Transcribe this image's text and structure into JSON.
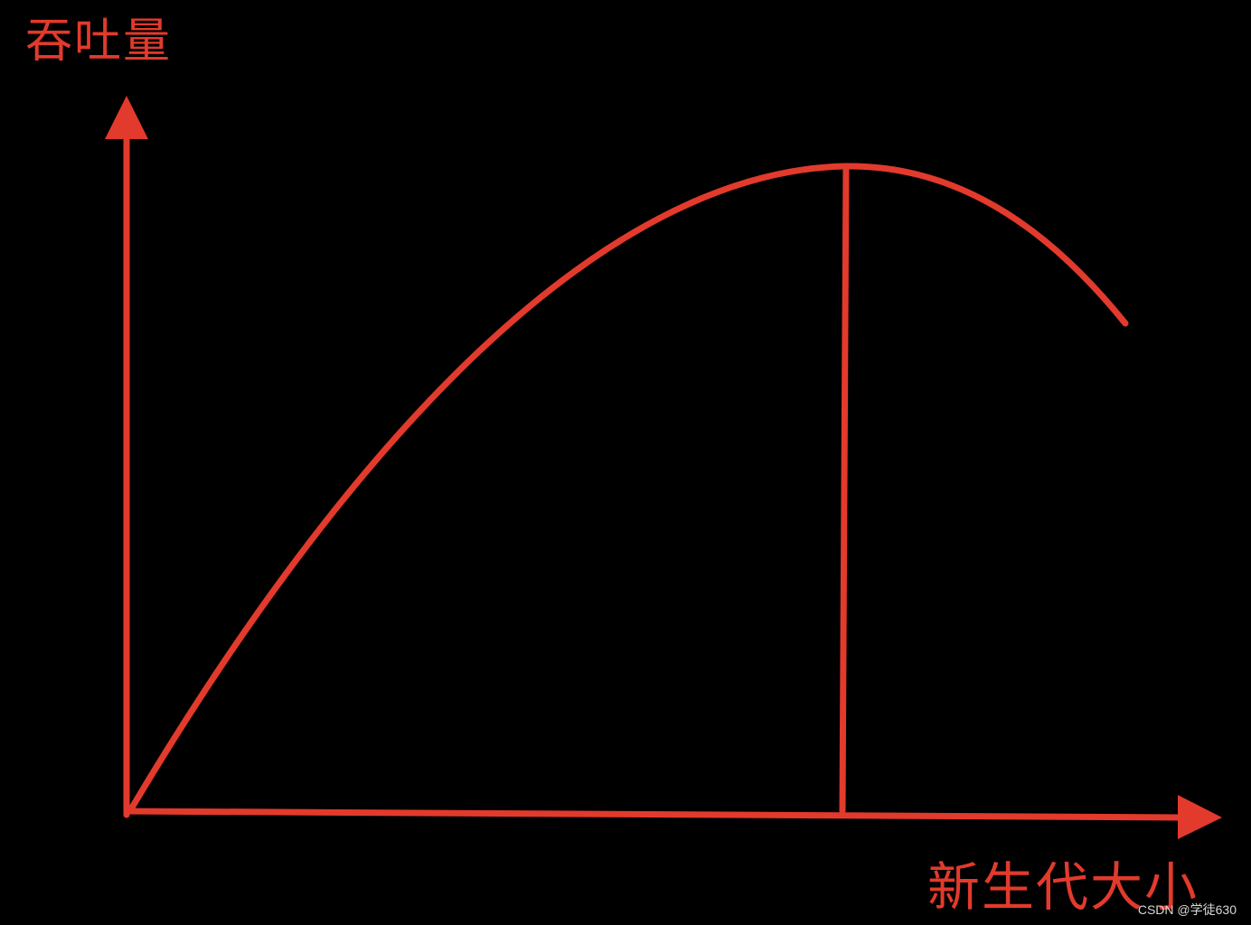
{
  "labels": {
    "y_axis": "吞吐量",
    "x_axis": "新生代大小"
  },
  "watermark": "CSDN @学徒630",
  "colors": {
    "background": "#000000",
    "stroke": "#e23a2c",
    "label_text": "#e23a2c"
  }
}
